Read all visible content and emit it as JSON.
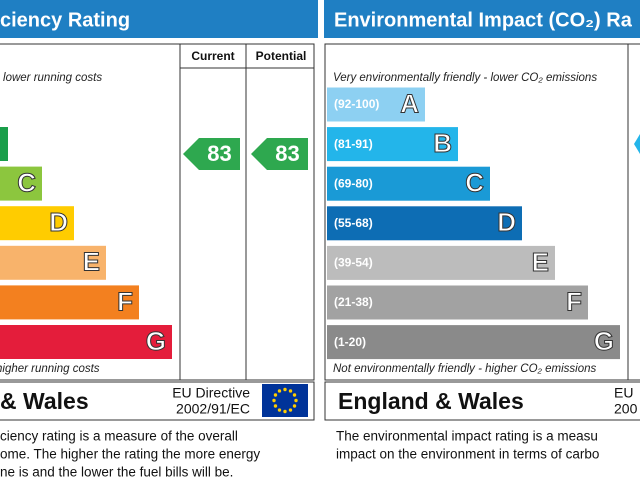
{
  "left": {
    "header": "ciency Rating",
    "columns": [
      "Current",
      "Potential"
    ],
    "top_note": "- lower running costs",
    "bottom_note": "higher running costs",
    "bands": [
      {
        "letter": "",
        "color": "#1a9e4a"
      },
      {
        "letter": "C",
        "color": "#8cc63e"
      },
      {
        "letter": "D",
        "color": "#ffcc00"
      },
      {
        "letter": "E",
        "color": "#f8b36b"
      },
      {
        "letter": "F",
        "color": "#f3801f"
      },
      {
        "letter": "G",
        "color": "#e41d3b"
      }
    ],
    "current": "83",
    "potential": "83",
    "rating_color": "#2ea84f",
    "region": "& Wales",
    "directive": [
      "EU Directive",
      "2002/91/EC"
    ],
    "description": [
      "ciency rating is a measure of the overall",
      "ome.  The higher the rating the more energy",
      "ne is and the lower the fuel bills will be."
    ]
  },
  "right": {
    "header": "Environmental Impact (CO₂) Ra",
    "top_note": "Very environmentally friendly - lower CO₂ emissions",
    "bottom_note": "Not environmentally friendly - higher CO₂ emissions",
    "bands": [
      {
        "range": "(92-100)",
        "letter": "A",
        "color": "#8dd0f2"
      },
      {
        "range": "(81-91)",
        "letter": "B",
        "color": "#23b5ea"
      },
      {
        "range": "(69-80)",
        "letter": "C",
        "color": "#1a9ad6"
      },
      {
        "range": "(55-68)",
        "letter": "D",
        "color": "#0d6db4"
      },
      {
        "range": "(39-54)",
        "letter": "E",
        "color": "#bcbcbc"
      },
      {
        "range": "(21-38)",
        "letter": "F",
        "color": "#a2a2a2"
      },
      {
        "range": "(1-20)",
        "letter": "G",
        "color": "#8a8a8a"
      }
    ],
    "region": "England & Wales",
    "directive": [
      "EU",
      "200"
    ],
    "description": [
      "The environmental impact rating is a measu",
      "impact on the environment in terms of carbo"
    ]
  }
}
